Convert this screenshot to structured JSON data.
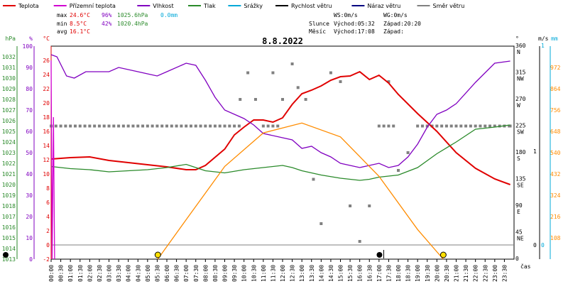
{
  "colors": {
    "teplota": "#e00000",
    "pocitova": "#d000d0",
    "vlhkost": "#8000c0",
    "tlak": "#2a8a2a",
    "srazky": "#00a8d8",
    "rychlost": "#000000",
    "naraz": "#000080",
    "smer": "#808080",
    "sun": "#ff8c00"
  },
  "legend": [
    {
      "key": "teplota",
      "label": "Teplota"
    },
    {
      "key": "pocitova",
      "label": "Přízemní teplota"
    },
    {
      "key": "vlhkost",
      "label": "Vlhkost"
    },
    {
      "key": "tlak",
      "label": "Tlak"
    },
    {
      "key": "srazky",
      "label": "Srážky"
    },
    {
      "key": "rychlost",
      "label": "Rychlost větru"
    },
    {
      "key": "naraz",
      "label": "Náraz větru"
    },
    {
      "key": "smer",
      "label": "Směr větru"
    }
  ],
  "stats": {
    "max_label": "max",
    "max_temp": "24.6°C",
    "max_hum": "96%",
    "max_press": "1025.6hPa",
    "max_rain": "0.0mm",
    "min_label": "min",
    "min_temp": "8.5°C",
    "min_hum": "42%",
    "min_press": "1020.4hPa",
    "avg_label": "avg",
    "avg_temp": "16.1°C"
  },
  "sun": {
    "ws": "WS:0m/s",
    "wg": "WG:0m/s",
    "slunce": "Slunce",
    "slunce_vychod": "Východ:05:32",
    "slunce_zapad": "Západ:20:20",
    "mesic": "Měsíc",
    "mesic_vychod": "Východ:17:08",
    "mesic_zapad": "Západ:"
  },
  "chart_data": {
    "type": "line",
    "title": "8.8.2022",
    "xlabel": "čas",
    "x_ticks": [
      "00:00",
      "00:30",
      "01:00",
      "01:30",
      "02:00",
      "02:30",
      "03:00",
      "03:30",
      "04:00",
      "04:30",
      "05:00",
      "05:30",
      "06:00",
      "06:30",
      "07:00",
      "07:30",
      "08:00",
      "08:30",
      "09:00",
      "09:30",
      "10:00",
      "10:30",
      "11:00",
      "11:30",
      "12:00",
      "12:30",
      "13:00",
      "13:30",
      "14:00",
      "14:30",
      "15:00",
      "15:30",
      "16:00",
      "16:30",
      "17:00",
      "17:30",
      "18:00",
      "18:30",
      "19:00",
      "19:30",
      "20:00",
      "20:30",
      "21:00",
      "21:30",
      "22:00",
      "22:30",
      "23:00",
      "23:30"
    ],
    "axes": {
      "hpa": {
        "label": "hPa",
        "ylim": [
          1013,
          1033
        ],
        "ticks": [
          1013,
          1014,
          1015,
          1016,
          1017,
          1018,
          1019,
          1020,
          1021,
          1022,
          1023,
          1024,
          1025,
          1026,
          1027,
          1028,
          1029,
          1030,
          1031,
          1032
        ]
      },
      "pct": {
        "label": "%",
        "ylim": [
          0,
          100
        ],
        "ticks": [
          0,
          10,
          20,
          30,
          40,
          50,
          60,
          70,
          80,
          90,
          100
        ]
      },
      "degc": {
        "label": "°C",
        "ylim": [
          -2,
          28
        ],
        "ticks": [
          -2,
          0,
          2,
          4,
          6,
          8,
          10,
          12,
          14,
          16,
          18,
          20,
          22,
          24,
          26
        ]
      },
      "dir": {
        "label": "°",
        "ylim": [
          0,
          360
        ],
        "ticks": [
          0,
          45,
          90,
          135,
          180,
          225,
          270,
          315,
          360
        ],
        "compass": [
          "",
          "NE",
          "E",
          "SE",
          "S",
          "SW",
          "W",
          "NW",
          "N"
        ]
      },
      "ms": {
        "label": "m/s",
        "ylim": [
          0,
          1
        ],
        "ticks": [
          0,
          1
        ]
      },
      "mm": {
        "label": "mm",
        "ylim": [
          0,
          1
        ],
        "ticks": [
          0,
          1
        ]
      },
      "sun": {
        "ylim": [
          0,
          1080
        ],
        "ticks": [
          108,
          216,
          324,
          432,
          540,
          648,
          756,
          864,
          972
        ]
      }
    },
    "series": [
      {
        "name": "Teplota",
        "axis": "degc",
        "color": "#e00000",
        "points": [
          [
            0,
            12.1
          ],
          [
            1,
            12.3
          ],
          [
            2,
            12.4
          ],
          [
            3,
            11.9
          ],
          [
            4,
            11.6
          ],
          [
            5,
            11.3
          ],
          [
            6,
            11.0
          ],
          [
            7,
            10.6
          ],
          [
            7.5,
            10.6
          ],
          [
            8,
            11.2
          ],
          [
            9,
            13.5
          ],
          [
            9.5,
            15.5
          ],
          [
            10,
            16.6
          ],
          [
            10.5,
            17.6
          ],
          [
            11,
            17.6
          ],
          [
            11.5,
            17.3
          ],
          [
            12,
            17.9
          ],
          [
            12.5,
            19.8
          ],
          [
            13,
            21.3
          ],
          [
            13.5,
            21.8
          ],
          [
            14,
            22.4
          ],
          [
            14.5,
            23.2
          ],
          [
            15,
            23.7
          ],
          [
            15.5,
            23.8
          ],
          [
            16,
            24.4
          ],
          [
            16.5,
            23.3
          ],
          [
            17,
            23.9
          ],
          [
            17.5,
            22.8
          ],
          [
            18,
            21.2
          ],
          [
            19,
            18.5
          ],
          [
            20,
            16.0
          ],
          [
            21,
            13.0
          ],
          [
            22,
            10.8
          ],
          [
            23,
            9.3
          ],
          [
            23.8,
            8.5
          ]
        ]
      },
      {
        "name": "Vlhkost",
        "axis": "pct",
        "color": "#8000c0",
        "points": [
          [
            0,
            96
          ],
          [
            0.3,
            95
          ],
          [
            0.8,
            86
          ],
          [
            1.2,
            85
          ],
          [
            1.8,
            88
          ],
          [
            3,
            88
          ],
          [
            3.5,
            90
          ],
          [
            4.5,
            88
          ],
          [
            5,
            87
          ],
          [
            5.5,
            86
          ],
          [
            6,
            88
          ],
          [
            7,
            92
          ],
          [
            7.5,
            91
          ],
          [
            8,
            84
          ],
          [
            8.5,
            76
          ],
          [
            9,
            70
          ],
          [
            10,
            66
          ],
          [
            10.5,
            63
          ],
          [
            11,
            59
          ],
          [
            12,
            57
          ],
          [
            12.5,
            56
          ],
          [
            13,
            52
          ],
          [
            13.5,
            53
          ],
          [
            14,
            50
          ],
          [
            14.5,
            48
          ],
          [
            15,
            45
          ],
          [
            15.5,
            44
          ],
          [
            16,
            43
          ],
          [
            16.5,
            44
          ],
          [
            17,
            45
          ],
          [
            17.5,
            43
          ],
          [
            18,
            44
          ],
          [
            18.5,
            48
          ],
          [
            19,
            54
          ],
          [
            19.5,
            62
          ],
          [
            20,
            68
          ],
          [
            20.5,
            70
          ],
          [
            21,
            73
          ],
          [
            22,
            83
          ],
          [
            23,
            92
          ],
          [
            23.8,
            93
          ]
        ]
      },
      {
        "name": "Tlak",
        "axis": "hpa",
        "color": "#2a8a2a",
        "points": [
          [
            0,
            1021.7
          ],
          [
            1,
            1021.5
          ],
          [
            2,
            1021.4
          ],
          [
            3,
            1021.2
          ],
          [
            4,
            1021.3
          ],
          [
            5,
            1021.4
          ],
          [
            6,
            1021.6
          ],
          [
            7,
            1021.9
          ],
          [
            7.5,
            1021.6
          ],
          [
            8,
            1021.3
          ],
          [
            9,
            1021.1
          ],
          [
            10,
            1021.4
          ],
          [
            11,
            1021.6
          ],
          [
            12,
            1021.8
          ],
          [
            12.5,
            1021.6
          ],
          [
            13,
            1021.3
          ],
          [
            14,
            1020.9
          ],
          [
            15,
            1020.6
          ],
          [
            16,
            1020.4
          ],
          [
            16.5,
            1020.5
          ],
          [
            17,
            1020.7
          ],
          [
            18,
            1020.9
          ],
          [
            19,
            1021.6
          ],
          [
            20,
            1022.9
          ],
          [
            21,
            1024.0
          ],
          [
            22,
            1025.2
          ],
          [
            23,
            1025.4
          ],
          [
            23.8,
            1025.6
          ]
        ]
      },
      {
        "name": "Přízemní teplota",
        "axis": "degc",
        "color": "#d000d0",
        "points": [
          [
            0,
            26
          ],
          [
            0.05,
            -2
          ],
          [
            0.12,
            18
          ],
          [
            0.18,
            -2
          ]
        ]
      },
      {
        "name": "Slunce",
        "axis": "sun",
        "color": "#ff8c00",
        "points": [
          [
            5.53,
            0
          ],
          [
            7,
            200
          ],
          [
            9,
            470
          ],
          [
            11,
            640
          ],
          [
            13,
            690
          ],
          [
            15,
            620
          ],
          [
            17,
            420
          ],
          [
            19,
            150
          ],
          [
            20.33,
            0
          ]
        ]
      }
    ],
    "wind_direction_points": [
      [
        0,
        225
      ],
      [
        1,
        225
      ],
      [
        2,
        225
      ],
      [
        3,
        225
      ],
      [
        4,
        225
      ],
      [
        5,
        225
      ],
      [
        6,
        225
      ],
      [
        7,
        225
      ],
      [
        8,
        225
      ],
      [
        9,
        225
      ],
      [
        9.8,
        270
      ],
      [
        10.2,
        315
      ],
      [
        10.6,
        270
      ],
      [
        11,
        225
      ],
      [
        11.5,
        315
      ],
      [
        12,
        270
      ],
      [
        12.5,
        330
      ],
      [
        12.8,
        290
      ],
      [
        13.2,
        270
      ],
      [
        13.6,
        135
      ],
      [
        14,
        60
      ],
      [
        14.5,
        315
      ],
      [
        15,
        300
      ],
      [
        15.5,
        90
      ],
      [
        16,
        30
      ],
      [
        16.5,
        90
      ],
      [
        17,
        225
      ],
      [
        17.5,
        300
      ],
      [
        18,
        150
      ],
      [
        18.5,
        180
      ],
      [
        19,
        225
      ],
      [
        20,
        225
      ],
      [
        21,
        225
      ],
      [
        22,
        225
      ],
      [
        23,
        225
      ],
      [
        23.8,
        225
      ]
    ],
    "markers": {
      "sunrise": "05:32",
      "sunset": "20:20",
      "moonrise": "17:08"
    }
  }
}
